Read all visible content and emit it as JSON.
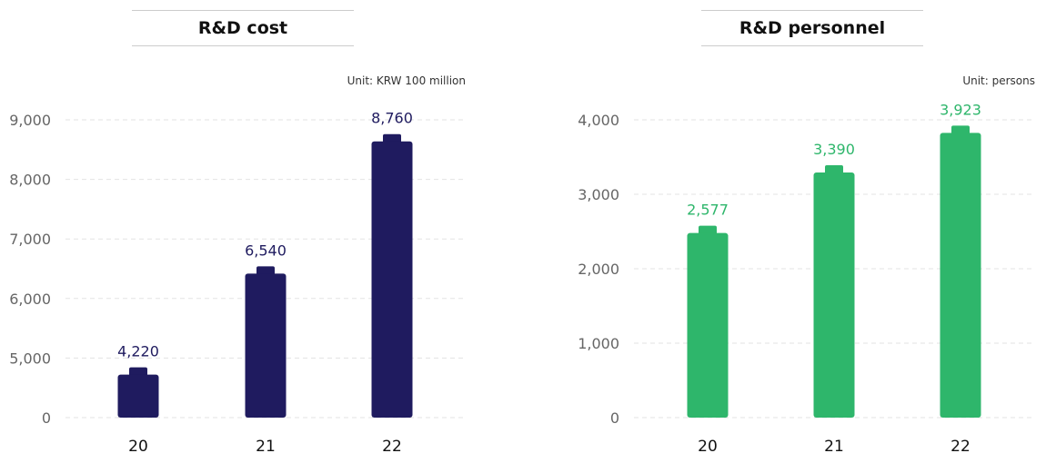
{
  "chart_data": [
    {
      "type": "bar",
      "title": "R&D cost",
      "unit": "Unit: KRW 100 million",
      "categories": [
        "20",
        "21",
        "22"
      ],
      "values": [
        4220,
        6540,
        8760
      ],
      "value_labels": [
        "4,220",
        "6,540",
        "8,760"
      ],
      "y_ticks": [
        0,
        5000,
        6000,
        7000,
        8000,
        9000
      ],
      "y_tick_labels": [
        "0",
        "5,000",
        "6,000",
        "7,000",
        "8,000",
        "9,000"
      ],
      "axis_break": true,
      "color": "#1f1b5f",
      "label_color": "#1f1b5f",
      "grid": true,
      "legend": "none"
    },
    {
      "type": "bar",
      "title": "R&D personnel",
      "unit": "Unit: persons",
      "categories": [
        "20",
        "21",
        "22"
      ],
      "values": [
        2577,
        3390,
        3923
      ],
      "value_labels": [
        "2,577",
        "3,390",
        "3,923"
      ],
      "y_ticks": [
        0,
        1000,
        2000,
        3000,
        4000
      ],
      "y_tick_labels": [
        "0",
        "1,000",
        "2,000",
        "3,000",
        "4,000"
      ],
      "axis_break": false,
      "color": "#2eb66b",
      "label_color": "#2eb66b",
      "grid": true,
      "legend": "none"
    }
  ]
}
